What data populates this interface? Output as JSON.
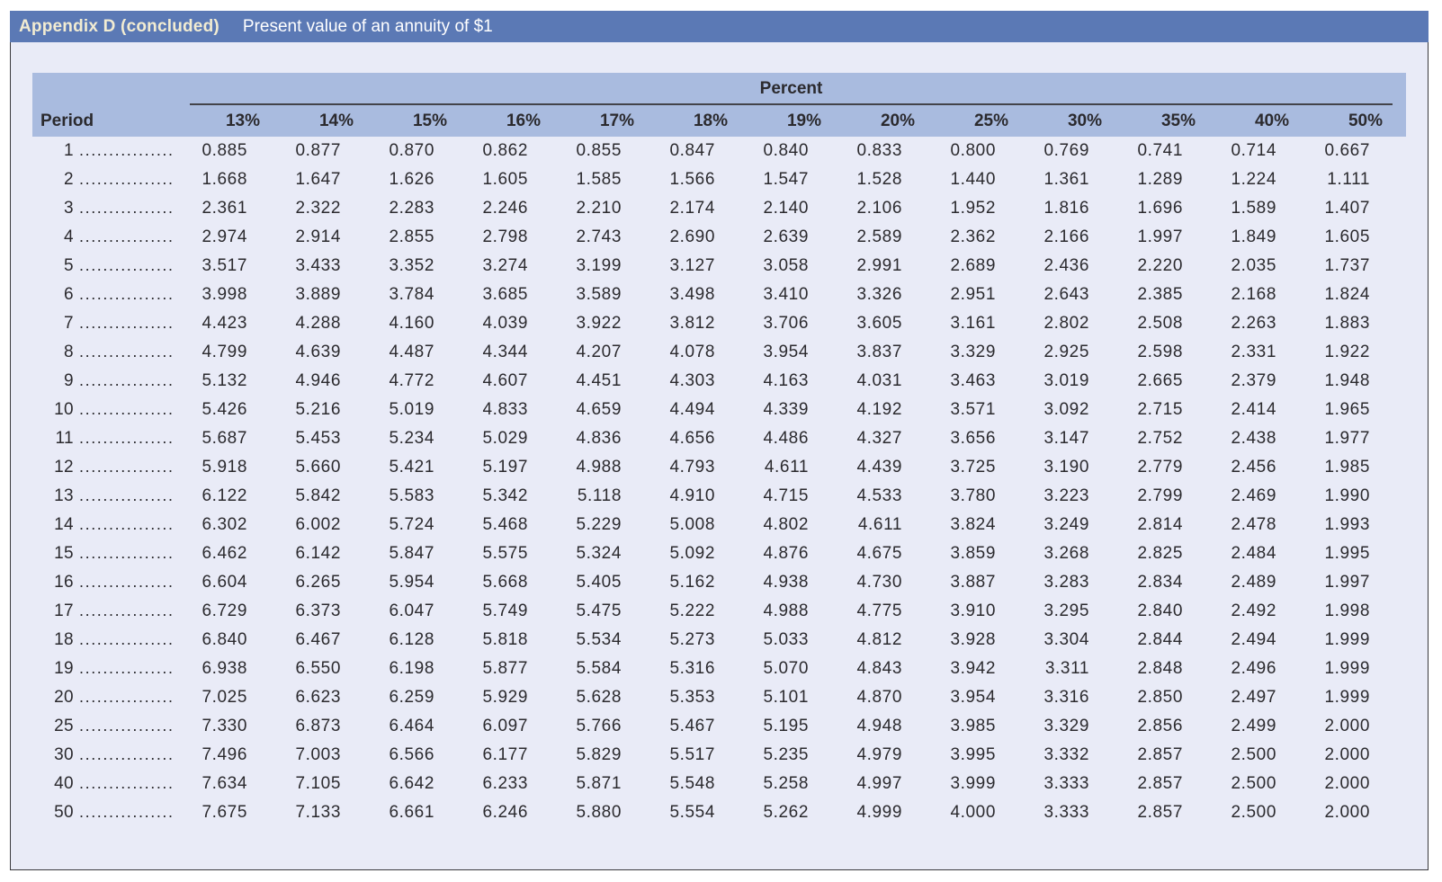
{
  "title_bar": {
    "title": "Appendix D (concluded)",
    "subtitle": "Present value of an annuity of $1"
  },
  "table": {
    "group_header": "Percent",
    "period_header": "Period",
    "leader_dots": "................",
    "rate_headers": [
      "13%",
      "14%",
      "15%",
      "16%",
      "17%",
      "18%",
      "19%",
      "20%",
      "25%",
      "30%",
      "35%",
      "40%",
      "50%"
    ],
    "rows": [
      {
        "period": "1",
        "values": [
          "0.885",
          "0.877",
          "0.870",
          "0.862",
          "0.855",
          "0.847",
          "0.840",
          "0.833",
          "0.800",
          "0.769",
          "0.741",
          "0.714",
          "0.667"
        ]
      },
      {
        "period": "2",
        "values": [
          "1.668",
          "1.647",
          "1.626",
          "1.605",
          "1.585",
          "1.566",
          "1.547",
          "1.528",
          "1.440",
          "1.361",
          "1.289",
          "1.224",
          "1.111"
        ]
      },
      {
        "period": "3",
        "values": [
          "2.361",
          "2.322",
          "2.283",
          "2.246",
          "2.210",
          "2.174",
          "2.140",
          "2.106",
          "1.952",
          "1.816",
          "1.696",
          "1.589",
          "1.407"
        ]
      },
      {
        "period": "4",
        "values": [
          "2.974",
          "2.914",
          "2.855",
          "2.798",
          "2.743",
          "2.690",
          "2.639",
          "2.589",
          "2.362",
          "2.166",
          "1.997",
          "1.849",
          "1.605"
        ]
      },
      {
        "period": "5",
        "values": [
          "3.517",
          "3.433",
          "3.352",
          "3.274",
          "3.199",
          "3.127",
          "3.058",
          "2.991",
          "2.689",
          "2.436",
          "2.220",
          "2.035",
          "1.737"
        ]
      },
      {
        "period": "6",
        "values": [
          "3.998",
          "3.889",
          "3.784",
          "3.685",
          "3.589",
          "3.498",
          "3.410",
          "3.326",
          "2.951",
          "2.643",
          "2.385",
          "2.168",
          "1.824"
        ]
      },
      {
        "period": "7",
        "values": [
          "4.423",
          "4.288",
          "4.160",
          "4.039",
          "3.922",
          "3.812",
          "3.706",
          "3.605",
          "3.161",
          "2.802",
          "2.508",
          "2.263",
          "1.883"
        ]
      },
      {
        "period": "8",
        "values": [
          "4.799",
          "4.639",
          "4.487",
          "4.344",
          "4.207",
          "4.078",
          "3.954",
          "3.837",
          "3.329",
          "2.925",
          "2.598",
          "2.331",
          "1.922"
        ]
      },
      {
        "period": "9",
        "values": [
          "5.132",
          "4.946",
          "4.772",
          "4.607",
          "4.451",
          "4.303",
          "4.163",
          "4.031",
          "3.463",
          "3.019",
          "2.665",
          "2.379",
          "1.948"
        ]
      },
      {
        "period": "10",
        "values": [
          "5.426",
          "5.216",
          "5.019",
          "4.833",
          "4.659",
          "4.494",
          "4.339",
          "4.192",
          "3.571",
          "3.092",
          "2.715",
          "2.414",
          "1.965"
        ]
      },
      {
        "period": "11",
        "values": [
          "5.687",
          "5.453",
          "5.234",
          "5.029",
          "4.836",
          "4.656",
          "4.486",
          "4.327",
          "3.656",
          "3.147",
          "2.752",
          "2.438",
          "1.977"
        ]
      },
      {
        "period": "12",
        "values": [
          "5.918",
          "5.660",
          "5.421",
          "5.197",
          "4.988",
          "4.793",
          "4.611",
          "4.439",
          "3.725",
          "3.190",
          "2.779",
          "2.456",
          "1.985"
        ]
      },
      {
        "period": "13",
        "values": [
          "6.122",
          "5.842",
          "5.583",
          "5.342",
          "5.118",
          "4.910",
          "4.715",
          "4.533",
          "3.780",
          "3.223",
          "2.799",
          "2.469",
          "1.990"
        ]
      },
      {
        "period": "14",
        "values": [
          "6.302",
          "6.002",
          "5.724",
          "5.468",
          "5.229",
          "5.008",
          "4.802",
          "4.611",
          "3.824",
          "3.249",
          "2.814",
          "2.478",
          "1.993"
        ]
      },
      {
        "period": "15",
        "values": [
          "6.462",
          "6.142",
          "5.847",
          "5.575",
          "5.324",
          "5.092",
          "4.876",
          "4.675",
          "3.859",
          "3.268",
          "2.825",
          "2.484",
          "1.995"
        ]
      },
      {
        "period": "16",
        "values": [
          "6.604",
          "6.265",
          "5.954",
          "5.668",
          "5.405",
          "5.162",
          "4.938",
          "4.730",
          "3.887",
          "3.283",
          "2.834",
          "2.489",
          "1.997"
        ]
      },
      {
        "period": "17",
        "values": [
          "6.729",
          "6.373",
          "6.047",
          "5.749",
          "5.475",
          "5.222",
          "4.988",
          "4.775",
          "3.910",
          "3.295",
          "2.840",
          "2.492",
          "1.998"
        ]
      },
      {
        "period": "18",
        "values": [
          "6.840",
          "6.467",
          "6.128",
          "5.818",
          "5.534",
          "5.273",
          "5.033",
          "4.812",
          "3.928",
          "3.304",
          "2.844",
          "2.494",
          "1.999"
        ]
      },
      {
        "period": "19",
        "values": [
          "6.938",
          "6.550",
          "6.198",
          "5.877",
          "5.584",
          "5.316",
          "5.070",
          "4.843",
          "3.942",
          "3.311",
          "2.848",
          "2.496",
          "1.999"
        ]
      },
      {
        "period": "20",
        "values": [
          "7.025",
          "6.623",
          "6.259",
          "5.929",
          "5.628",
          "5.353",
          "5.101",
          "4.870",
          "3.954",
          "3.316",
          "2.850",
          "2.497",
          "1.999"
        ]
      },
      {
        "period": "25",
        "values": [
          "7.330",
          "6.873",
          "6.464",
          "6.097",
          "5.766",
          "5.467",
          "5.195",
          "4.948",
          "3.985",
          "3.329",
          "2.856",
          "2.499",
          "2.000"
        ]
      },
      {
        "period": "30",
        "values": [
          "7.496",
          "7.003",
          "6.566",
          "6.177",
          "5.829",
          "5.517",
          "5.235",
          "4.979",
          "3.995",
          "3.332",
          "2.857",
          "2.500",
          "2.000"
        ]
      },
      {
        "period": "40",
        "values": [
          "7.634",
          "7.105",
          "6.642",
          "6.233",
          "5.871",
          "5.548",
          "5.258",
          "4.997",
          "3.999",
          "3.333",
          "2.857",
          "2.500",
          "2.000"
        ]
      },
      {
        "period": "50",
        "values": [
          "7.675",
          "7.133",
          "6.661",
          "6.246",
          "5.880",
          "5.554",
          "5.262",
          "4.999",
          "4.000",
          "3.333",
          "2.857",
          "2.500",
          "2.000"
        ]
      }
    ]
  },
  "colors": {
    "title_bar_bg": "#5b79b5",
    "title_text": "#f2ecd2",
    "subtitle_text": "#ffffff",
    "header_band_bg": "#a9bbdf",
    "body_bg": "#e9ebf7",
    "text": "#2b2a2e",
    "frame_border": "#3a3a3e",
    "percent_rule": "#43434a"
  }
}
